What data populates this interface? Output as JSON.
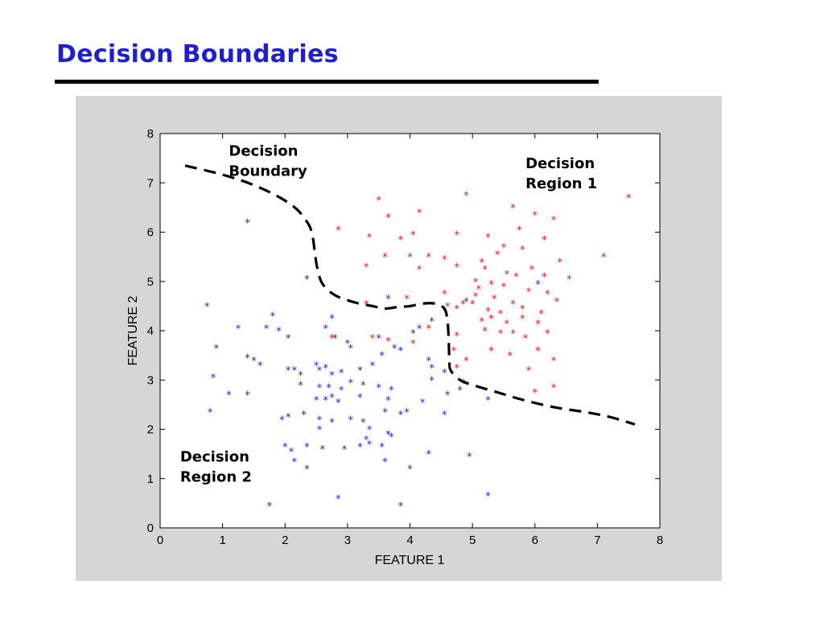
{
  "slide": {
    "title": "Decision Boundaries"
  },
  "colors": {
    "title": "#1f1fd2",
    "panel_background": "#d6d6d6",
    "plot_background": "#ffffff",
    "class1": "#e8141b",
    "class2": "#1c1cd8",
    "boundary": "#000000"
  },
  "chart_data": {
    "type": "scatter",
    "title": "",
    "xlabel": "FEATURE 1",
    "ylabel": "FEATURE 2",
    "xlim": [
      0,
      8
    ],
    "ylim": [
      0,
      8
    ],
    "xticks": [
      0,
      1,
      2,
      3,
      4,
      5,
      6,
      7,
      8
    ],
    "yticks": [
      0,
      1,
      2,
      3,
      4,
      5,
      6,
      7,
      8
    ],
    "grid": false,
    "marker": "*",
    "series": [
      {
        "class": "decision-region-1",
        "color": "#e8141b",
        "points": [
          [
            3.5,
            6.65
          ],
          [
            3.65,
            6.3
          ],
          [
            4.15,
            6.4
          ],
          [
            4.9,
            6.75
          ],
          [
            5.65,
            6.5
          ],
          [
            6.0,
            6.35
          ],
          [
            6.3,
            6.25
          ],
          [
            7.5,
            6.7
          ],
          [
            2.85,
            6.05
          ],
          [
            3.35,
            5.9
          ],
          [
            3.85,
            5.85
          ],
          [
            4.05,
            5.95
          ],
          [
            4.75,
            5.95
          ],
          [
            5.25,
            5.9
          ],
          [
            5.5,
            5.7
          ],
          [
            5.75,
            6.05
          ],
          [
            6.15,
            5.85
          ],
          [
            3.6,
            5.5
          ],
          [
            4.0,
            5.5
          ],
          [
            4.3,
            5.5
          ],
          [
            4.55,
            5.45
          ],
          [
            5.15,
            5.4
          ],
          [
            5.4,
            5.55
          ],
          [
            5.8,
            5.65
          ],
          [
            6.4,
            5.4
          ],
          [
            7.1,
            5.5
          ],
          [
            3.3,
            5.3
          ],
          [
            4.15,
            5.25
          ],
          [
            4.75,
            5.3
          ],
          [
            5.2,
            5.25
          ],
          [
            5.55,
            5.15
          ],
          [
            5.7,
            5.1
          ],
          [
            5.95,
            5.25
          ],
          [
            6.15,
            5.1
          ],
          [
            6.55,
            5.05
          ],
          [
            5.05,
            5.0
          ],
          [
            5.3,
            4.95
          ],
          [
            5.1,
            4.85
          ],
          [
            5.5,
            4.9
          ],
          [
            5.9,
            4.8
          ],
          [
            6.2,
            4.75
          ],
          [
            4.55,
            4.75
          ],
          [
            4.85,
            4.55
          ],
          [
            5.05,
            4.7
          ],
          [
            5.35,
            4.65
          ],
          [
            5.65,
            4.55
          ],
          [
            5.8,
            4.45
          ],
          [
            6.35,
            4.6
          ],
          [
            3.3,
            4.55
          ],
          [
            3.95,
            4.65
          ],
          [
            4.6,
            4.5
          ],
          [
            4.75,
            4.45
          ],
          [
            5.0,
            4.55
          ],
          [
            5.25,
            4.4
          ],
          [
            5.45,
            4.35
          ],
          [
            6.1,
            4.35
          ],
          [
            5.15,
            4.2
          ],
          [
            5.3,
            4.25
          ],
          [
            5.55,
            4.15
          ],
          [
            5.8,
            4.25
          ],
          [
            6.05,
            4.15
          ],
          [
            4.3,
            4.05
          ],
          [
            4.75,
            3.9
          ],
          [
            5.2,
            4.0
          ],
          [
            5.45,
            3.95
          ],
          [
            5.65,
            3.95
          ],
          [
            5.85,
            3.85
          ],
          [
            6.2,
            3.95
          ],
          [
            3.4,
            3.85
          ],
          [
            3.65,
            3.8
          ],
          [
            4.05,
            3.75
          ],
          [
            4.7,
            3.6
          ],
          [
            5.3,
            3.6
          ],
          [
            5.6,
            3.5
          ],
          [
            6.05,
            3.6
          ],
          [
            6.3,
            3.4
          ],
          [
            2.75,
            3.85
          ],
          [
            4.9,
            3.4
          ],
          [
            4.75,
            3.25
          ],
          [
            5.9,
            3.2
          ],
          [
            6.0,
            2.75
          ],
          [
            6.3,
            2.85
          ],
          [
            4.85,
            2.95
          ]
        ]
      },
      {
        "class": "decision-region-2",
        "color": "#1c1cd8",
        "points": [
          [
            1.4,
            6.2
          ],
          [
            2.35,
            5.05
          ],
          [
            3.65,
            4.65
          ],
          [
            4.9,
            4.6
          ],
          [
            6.05,
            4.95
          ],
          [
            4.35,
            4.2
          ],
          [
            0.75,
            4.5
          ],
          [
            1.25,
            4.05
          ],
          [
            1.8,
            4.3
          ],
          [
            1.7,
            4.05
          ],
          [
            1.9,
            4.0
          ],
          [
            2.05,
            3.85
          ],
          [
            2.65,
            4.05
          ],
          [
            2.75,
            4.25
          ],
          [
            2.8,
            3.85
          ],
          [
            3.0,
            3.75
          ],
          [
            3.05,
            3.65
          ],
          [
            3.5,
            3.85
          ],
          [
            3.75,
            3.65
          ],
          [
            3.85,
            3.6
          ],
          [
            4.05,
            3.95
          ],
          [
            4.15,
            4.05
          ],
          [
            0.9,
            3.65
          ],
          [
            1.4,
            3.45
          ],
          [
            1.5,
            3.4
          ],
          [
            1.6,
            3.3
          ],
          [
            2.05,
            3.2
          ],
          [
            2.15,
            3.2
          ],
          [
            2.25,
            3.1
          ],
          [
            2.5,
            3.3
          ],
          [
            2.55,
            3.2
          ],
          [
            2.65,
            3.25
          ],
          [
            2.75,
            3.1
          ],
          [
            2.9,
            3.15
          ],
          [
            3.2,
            3.2
          ],
          [
            3.4,
            3.3
          ],
          [
            3.55,
            3.5
          ],
          [
            4.3,
            3.4
          ],
          [
            4.35,
            3.25
          ],
          [
            0.85,
            3.05
          ],
          [
            2.25,
            2.9
          ],
          [
            2.55,
            2.85
          ],
          [
            2.7,
            2.85
          ],
          [
            2.9,
            2.8
          ],
          [
            3.05,
            2.95
          ],
          [
            3.25,
            2.9
          ],
          [
            3.5,
            2.85
          ],
          [
            3.7,
            2.8
          ],
          [
            4.35,
            3.0
          ],
          [
            4.55,
            3.15
          ],
          [
            4.8,
            2.8
          ],
          [
            1.1,
            2.7
          ],
          [
            1.4,
            2.7
          ],
          [
            2.5,
            2.6
          ],
          [
            2.65,
            2.6
          ],
          [
            2.75,
            2.65
          ],
          [
            2.85,
            2.55
          ],
          [
            3.2,
            2.65
          ],
          [
            3.65,
            2.6
          ],
          [
            4.2,
            2.55
          ],
          [
            5.25,
            2.6
          ],
          [
            4.6,
            2.7
          ],
          [
            0.8,
            2.35
          ],
          [
            1.95,
            2.2
          ],
          [
            2.05,
            2.25
          ],
          [
            2.3,
            2.3
          ],
          [
            2.55,
            2.2
          ],
          [
            2.75,
            2.15
          ],
          [
            3.05,
            2.2
          ],
          [
            3.25,
            2.15
          ],
          [
            3.6,
            2.35
          ],
          [
            3.95,
            2.35
          ],
          [
            3.85,
            2.3
          ],
          [
            4.55,
            2.3
          ],
          [
            2.55,
            2.0
          ],
          [
            3.35,
            2.0
          ],
          [
            3.65,
            1.9
          ],
          [
            3.7,
            1.85
          ],
          [
            3.3,
            1.8
          ],
          [
            2.0,
            1.65
          ],
          [
            2.1,
            1.55
          ],
          [
            2.35,
            1.65
          ],
          [
            2.6,
            1.6
          ],
          [
            2.95,
            1.6
          ],
          [
            3.2,
            1.65
          ],
          [
            3.35,
            1.7
          ],
          [
            3.55,
            1.65
          ],
          [
            2.15,
            1.35
          ],
          [
            2.35,
            1.2
          ],
          [
            3.6,
            1.35
          ],
          [
            4.0,
            1.2
          ],
          [
            4.3,
            1.5
          ],
          [
            4.95,
            1.45
          ],
          [
            1.75,
            0.45
          ],
          [
            2.85,
            0.6
          ],
          [
            3.85,
            0.45
          ],
          [
            5.25,
            0.65
          ]
        ]
      }
    ],
    "boundary": {
      "style": "dashed",
      "points": [
        [
          0.4,
          7.35
        ],
        [
          0.9,
          7.2
        ],
        [
          1.3,
          7.05
        ],
        [
          1.6,
          6.9
        ],
        [
          1.85,
          6.75
        ],
        [
          2.05,
          6.6
        ],
        [
          2.2,
          6.45
        ],
        [
          2.3,
          6.3
        ],
        [
          2.4,
          6.1
        ],
        [
          2.45,
          5.85
        ],
        [
          2.48,
          5.55
        ],
        [
          2.52,
          5.25
        ],
        [
          2.6,
          4.95
        ],
        [
          2.8,
          4.72
        ],
        [
          3.1,
          4.58
        ],
        [
          3.4,
          4.5
        ],
        [
          3.6,
          4.45
        ],
        [
          3.8,
          4.48
        ],
        [
          4.0,
          4.5
        ],
        [
          4.2,
          4.55
        ],
        [
          4.4,
          4.55
        ],
        [
          4.55,
          4.45
        ],
        [
          4.6,
          4.2
        ],
        [
          4.62,
          3.8
        ],
        [
          4.63,
          3.4
        ],
        [
          4.65,
          3.2
        ],
        [
          4.8,
          3.0
        ],
        [
          5.0,
          2.9
        ],
        [
          5.4,
          2.75
        ],
        [
          5.8,
          2.6
        ],
        [
          6.3,
          2.45
        ],
        [
          6.8,
          2.35
        ],
        [
          7.2,
          2.25
        ],
        [
          7.6,
          2.1
        ]
      ]
    },
    "annotations": [
      {
        "id": "boundary-label",
        "lines": [
          "Decision",
          "Boundary"
        ],
        "x": 1.1,
        "y": 7.55
      },
      {
        "id": "region1-label",
        "lines": [
          "Decision",
          "Region 1"
        ],
        "x": 5.85,
        "y": 7.3
      },
      {
        "id": "region2-label",
        "lines": [
          "Decision",
          "Region 2"
        ],
        "x": 0.32,
        "y": 1.35
      }
    ]
  }
}
